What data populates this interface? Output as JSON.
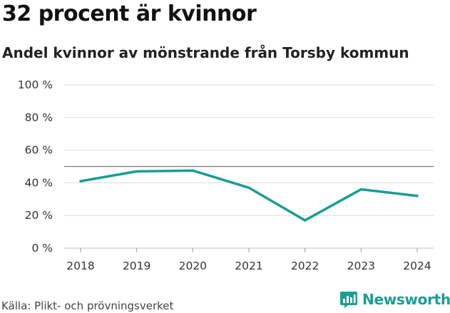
{
  "title": "32 procent är kvinnor",
  "subtitle": "Andel kvinnor av mönstrande från Torsby kommun",
  "source": "Källa: Plikt- och prövningsverket",
  "brand": {
    "name": "Newsworthy",
    "icon": "bar-chart-logo-icon"
  },
  "colors": {
    "line": "#1a9e91",
    "grid": "#dcdcdc",
    "reference": "#777777",
    "brand": "#1a9e91"
  },
  "chart_data": {
    "type": "line",
    "x": [
      "2018",
      "2019",
      "2020",
      "2021",
      "2022",
      "2023",
      "2024"
    ],
    "series": [
      {
        "name": "Andel kvinnor",
        "values": [
          41,
          47,
          47.5,
          37,
          17,
          36,
          32
        ]
      }
    ],
    "yticks": [
      "0 %",
      "20 %",
      "40 %",
      "60 %",
      "80 %",
      "100 %"
    ],
    "ytick_values": [
      0,
      20,
      40,
      60,
      80,
      100
    ],
    "ylim": [
      0,
      100
    ],
    "reference_line": 50,
    "grid": true,
    "xlabel": "",
    "ylabel": ""
  }
}
